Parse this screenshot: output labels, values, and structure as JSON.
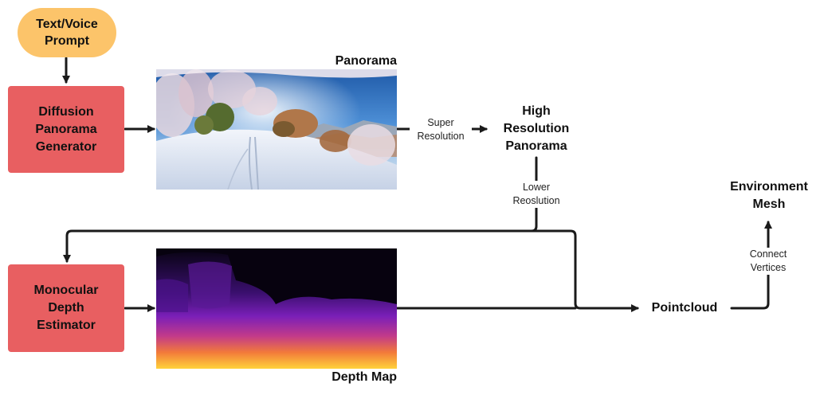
{
  "nodes": {
    "prompt": "Text/Voice\nPrompt",
    "diffusion": "Diffusion\nPanorama\nGenerator",
    "monocular": "Monocular\nDepth\nEstimator",
    "panorama_title": "Panorama",
    "high_res": "High\nResolution\nPanorama",
    "depth_map_title": "Depth Map",
    "pointcloud": "Pointcloud",
    "environment_mesh": "Environment\nMesh"
  },
  "edge_labels": {
    "super_resolution": "Super\nResolution",
    "lower_resolution": "Lower\nReoslution",
    "connect_vertices": "Connect\nVertices"
  },
  "colors": {
    "prompt_fill": "#fcc46a",
    "model_fill": "#e85f61",
    "arrow": "#1a1a1a"
  }
}
